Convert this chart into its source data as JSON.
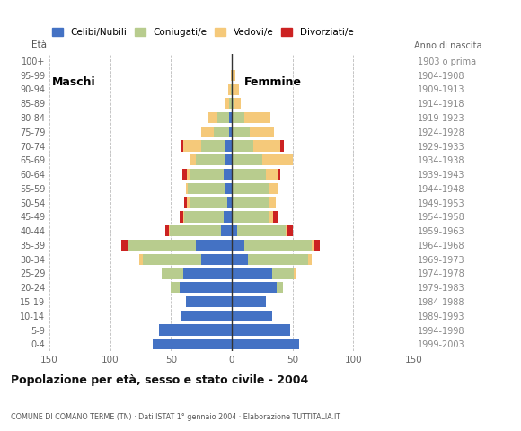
{
  "age_groups": [
    "0-4",
    "5-9",
    "10-14",
    "15-19",
    "20-24",
    "25-29",
    "30-34",
    "35-39",
    "40-44",
    "45-49",
    "50-54",
    "55-59",
    "60-64",
    "65-69",
    "70-74",
    "75-79",
    "80-84",
    "85-89",
    "90-94",
    "95-99",
    "100+"
  ],
  "birth_years": [
    "1999-2003",
    "1994-1998",
    "1989-1993",
    "1984-1988",
    "1979-1983",
    "1974-1978",
    "1969-1973",
    "1964-1968",
    "1959-1963",
    "1954-1958",
    "1949-1953",
    "1944-1948",
    "1939-1943",
    "1934-1938",
    "1929-1933",
    "1924-1928",
    "1919-1923",
    "1914-1918",
    "1909-1913",
    "1904-1908",
    "1903 o prima"
  ],
  "males": {
    "celibi": [
      65,
      60,
      42,
      38,
      43,
      40,
      25,
      30,
      9,
      7,
      4,
      6,
      7,
      5,
      5,
      2,
      2,
      0,
      0,
      0,
      0
    ],
    "coniugati": [
      0,
      0,
      0,
      0,
      7,
      18,
      48,
      55,
      42,
      32,
      30,
      30,
      28,
      25,
      20,
      13,
      10,
      2,
      1,
      0,
      0
    ],
    "vedovi": [
      0,
      0,
      0,
      0,
      0,
      0,
      3,
      1,
      1,
      1,
      3,
      2,
      2,
      5,
      15,
      10,
      8,
      3,
      2,
      1,
      0
    ],
    "divorziati": [
      0,
      0,
      0,
      0,
      0,
      0,
      0,
      5,
      3,
      3,
      2,
      0,
      4,
      0,
      2,
      0,
      0,
      0,
      0,
      0,
      0
    ]
  },
  "females": {
    "celibi": [
      55,
      48,
      33,
      28,
      37,
      33,
      13,
      10,
      4,
      0,
      0,
      0,
      0,
      0,
      0,
      0,
      0,
      0,
      0,
      0,
      0
    ],
    "coniugati": [
      0,
      0,
      0,
      0,
      5,
      18,
      50,
      56,
      40,
      31,
      30,
      30,
      28,
      25,
      18,
      15,
      10,
      2,
      1,
      0,
      0
    ],
    "vedovi": [
      0,
      0,
      0,
      0,
      0,
      2,
      3,
      2,
      2,
      3,
      6,
      8,
      10,
      25,
      22,
      20,
      22,
      5,
      5,
      3,
      0
    ],
    "divorziati": [
      0,
      0,
      0,
      0,
      0,
      0,
      0,
      4,
      4,
      4,
      0,
      0,
      2,
      0,
      3,
      0,
      0,
      0,
      0,
      0,
      0
    ]
  },
  "colors": {
    "celibi": "#4472c4",
    "coniugati": "#b8cc8e",
    "vedovi": "#f5c97a",
    "divorziati": "#cc2222"
  },
  "xlim": 150,
  "title": "Popolazione per età, sesso e stato civile - 2004",
  "subtitle": "COMUNE DI COMANO TERME (TN) · Dati ISTAT 1° gennaio 2004 · Elaborazione TUTTITALIA.IT",
  "legend_labels": [
    "Celibi/Nubili",
    "Coniugati/e",
    "Vedovi/e",
    "Divorziati/e"
  ],
  "eta_label": "Età",
  "anno_label": "Anno di nascita",
  "maschi_label": "Maschi",
  "femmine_label": "Femmine"
}
